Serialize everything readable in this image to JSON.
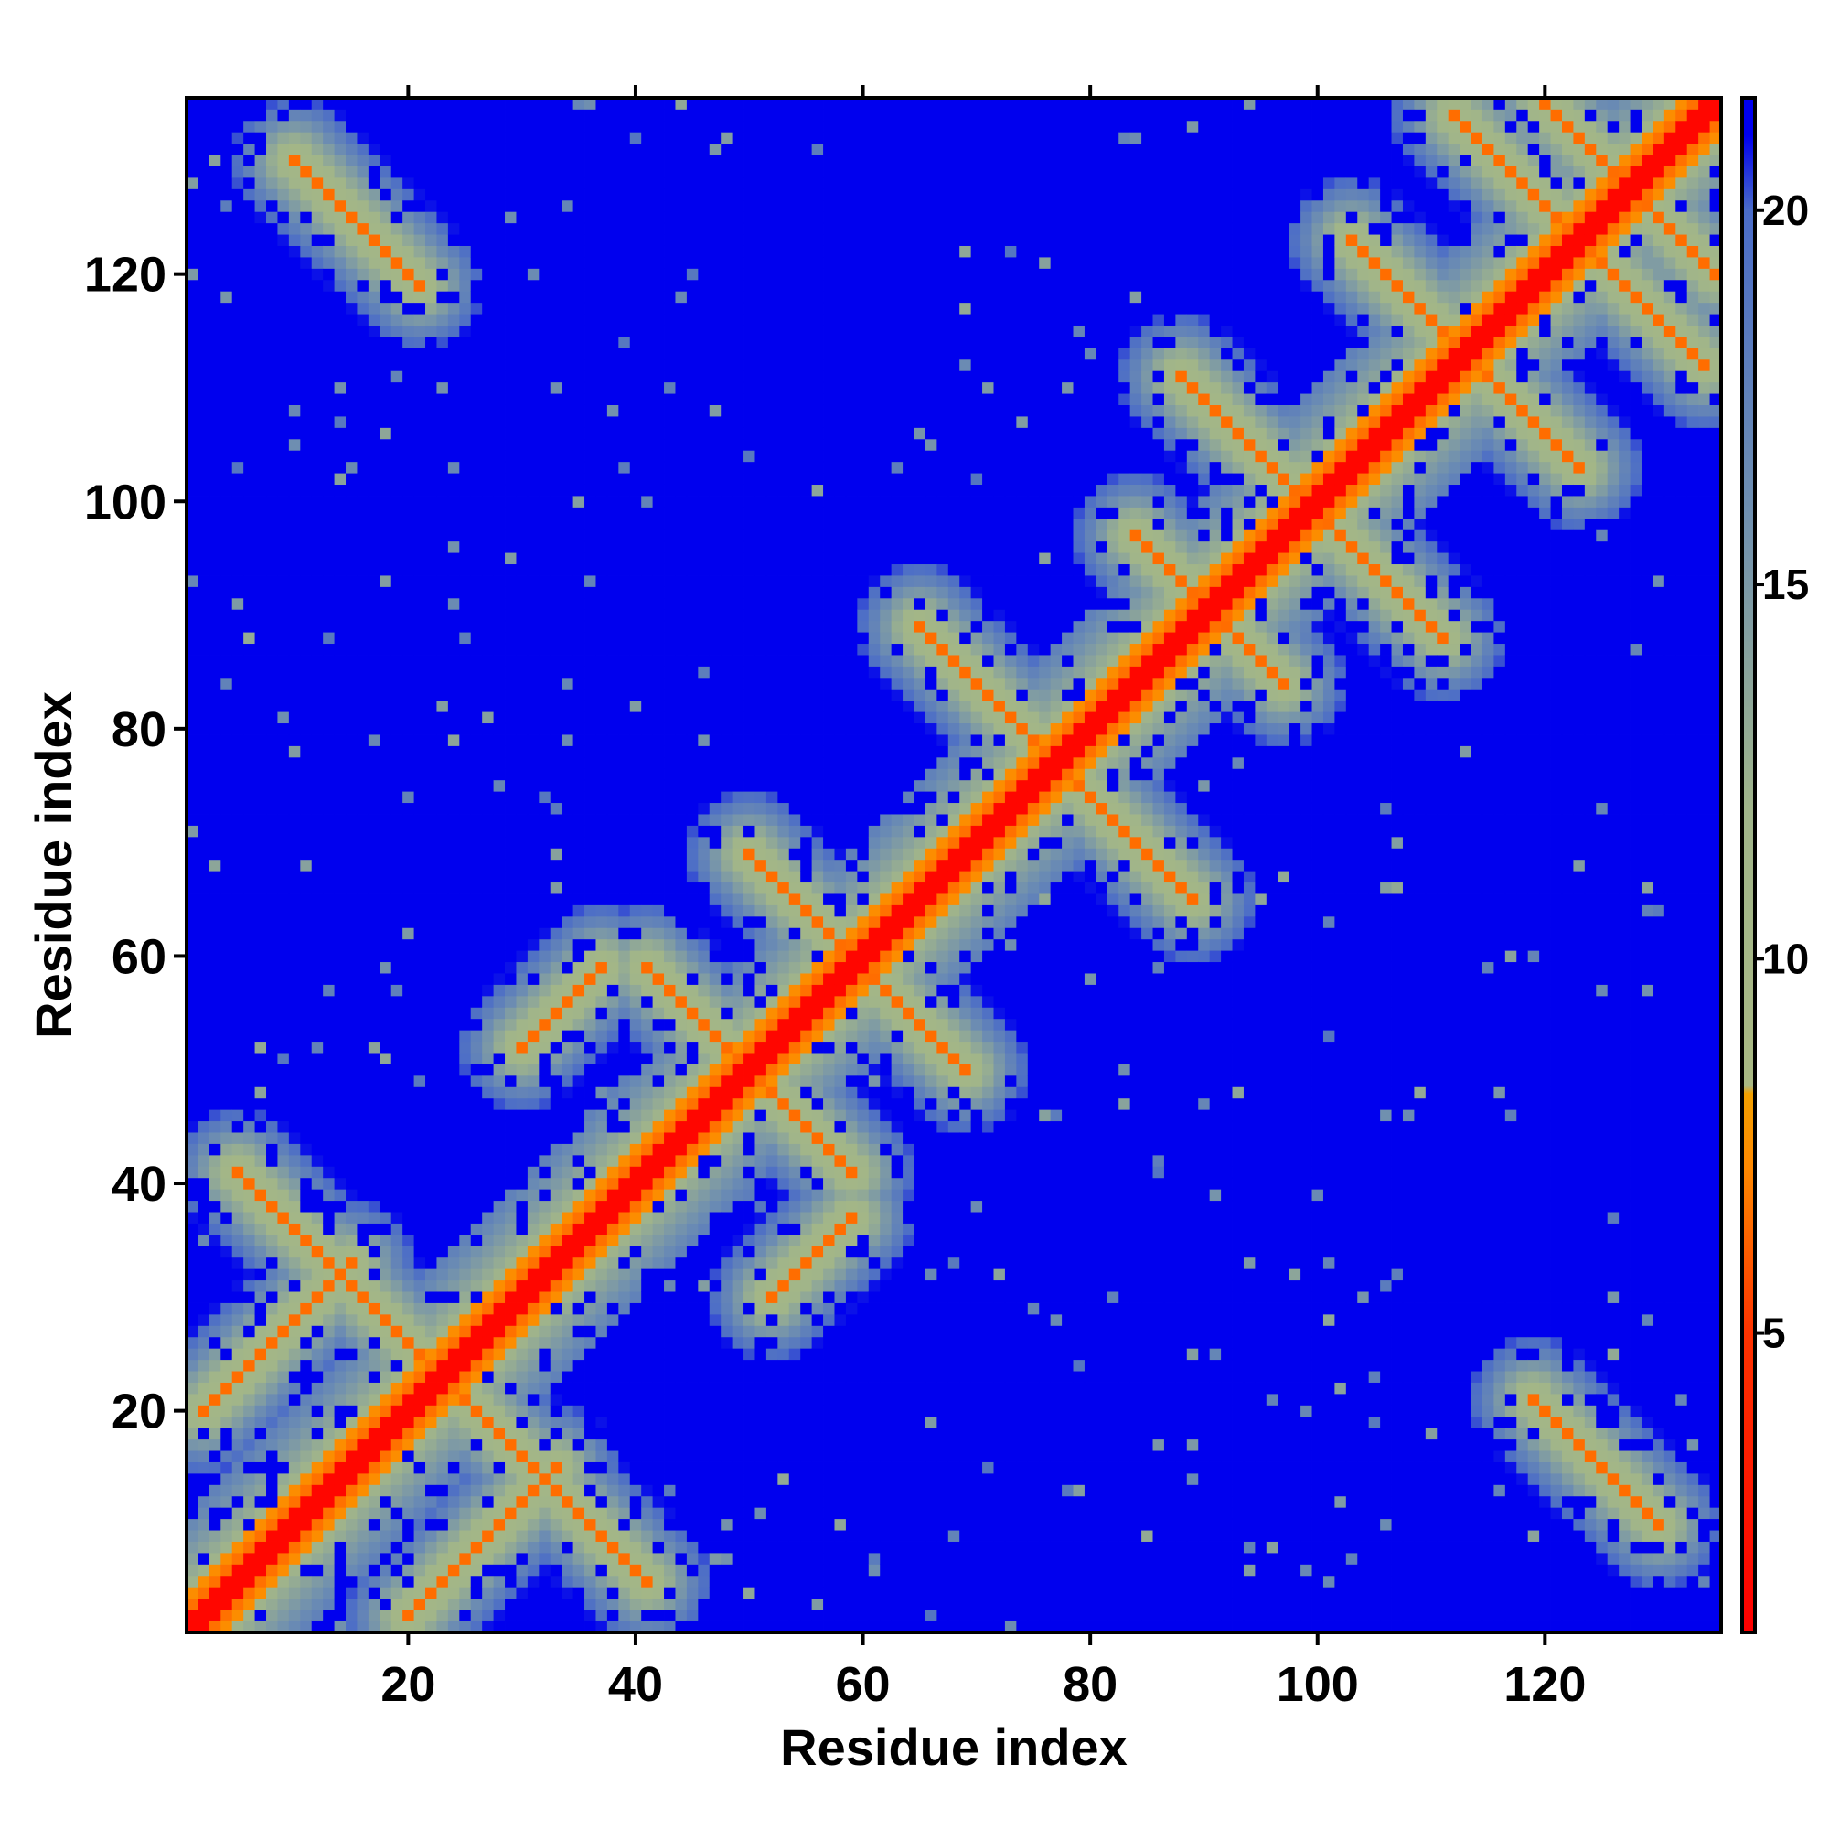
{
  "chart_data": {
    "type": "heatmap",
    "title": "",
    "xlabel": "Residue index",
    "ylabel": "Residue index",
    "n_residues": 135,
    "xlim": [
      1,
      135
    ],
    "ylim": [
      1,
      135
    ],
    "x_ticks": [
      20,
      40,
      60,
      80,
      100,
      120
    ],
    "y_ticks": [
      20,
      40,
      60,
      80,
      100,
      120
    ],
    "colorbar": {
      "range": [
        1,
        21.5
      ],
      "ticks": [
        5,
        10,
        15,
        20
      ],
      "stops": [
        {
          "value": 1,
          "color": "#ff0000"
        },
        {
          "value": 5,
          "color": "#ff3300"
        },
        {
          "value": 7.2,
          "color": "#ff8800"
        },
        {
          "value": 8.2,
          "color": "#f2a000"
        },
        {
          "value": 8.3,
          "color": "#a9b883"
        },
        {
          "value": 12,
          "color": "#a0b48a"
        },
        {
          "value": 16,
          "color": "#6f8fb0"
        },
        {
          "value": 20,
          "color": "#4a6cc8"
        },
        {
          "value": 21,
          "color": "#0000ee"
        }
      ]
    },
    "background_value": 21,
    "colors": {
      "diagonal": "#ff0000",
      "contact": "#ff8800",
      "near": "#a9b883",
      "far": "#0000ee"
    },
    "segments": [
      {
        "a": 2,
        "b": 20,
        "kind": "parallel",
        "len": 14
      },
      {
        "a": 5,
        "b": 41,
        "kind": "anti",
        "len": 18
      },
      {
        "a": 10,
        "b": 130,
        "kind": "anti",
        "len": 12
      },
      {
        "a": 30,
        "b": 52,
        "kind": "parallel",
        "len": 8
      },
      {
        "a": 41,
        "b": 59,
        "kind": "anti",
        "len": 10
      },
      {
        "a": 50,
        "b": 69,
        "kind": "anti",
        "len": 12
      },
      {
        "a": 66,
        "b": 88,
        "kind": "anti",
        "len": 24
      },
      {
        "a": 84,
        "b": 97,
        "kind": "anti",
        "len": 10
      },
      {
        "a": 88,
        "b": 111,
        "kind": "anti",
        "len": 12
      },
      {
        "a": 103,
        "b": 123,
        "kind": "anti",
        "len": 12
      },
      {
        "a": 112,
        "b": 134,
        "kind": "anti",
        "len": 14
      },
      {
        "a": 120,
        "b": 135,
        "kind": "anti",
        "len": 8
      }
    ]
  }
}
